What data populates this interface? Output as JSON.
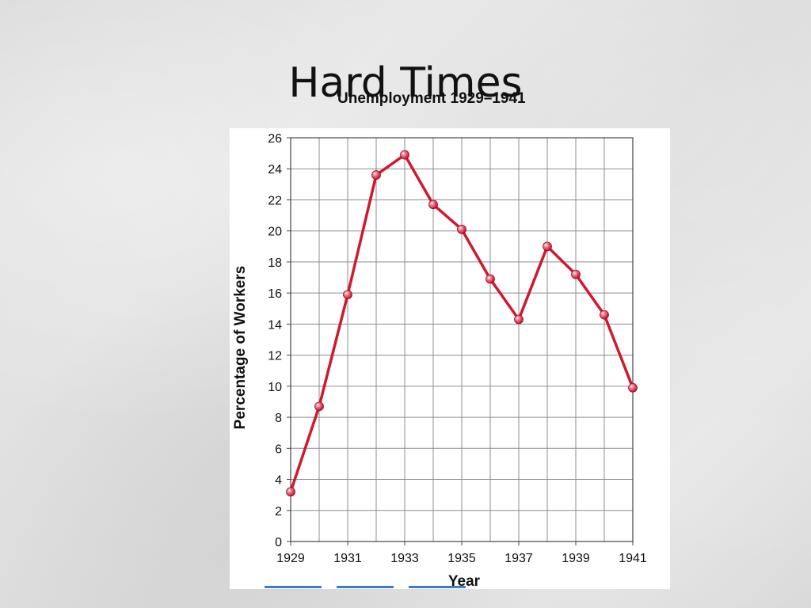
{
  "slide": {
    "title": "Hard Times"
  },
  "chart_data": {
    "type": "line",
    "title": "Unemployment 1929–1941",
    "xlabel": "Year",
    "ylabel": "Percentage of Workers",
    "x": [
      1929,
      1930,
      1931,
      1932,
      1933,
      1934,
      1935,
      1936,
      1937,
      1938,
      1939,
      1940,
      1941
    ],
    "series": [
      {
        "values": [
          3.2,
          8.7,
          15.9,
          23.6,
          24.9,
          21.7,
          20.1,
          16.9,
          14.3,
          19.0,
          17.2,
          14.6,
          9.9
        ]
      }
    ],
    "xlim": [
      1929,
      1941
    ],
    "ylim": [
      0,
      26
    ],
    "yticks": [
      0,
      2,
      4,
      6,
      8,
      10,
      12,
      14,
      16,
      18,
      20,
      22,
      24,
      26
    ],
    "xtick_labels": [
      "1929",
      "1931",
      "1933",
      "1935",
      "1937",
      "1939",
      "1941"
    ],
    "grid": true,
    "line_color": "#d0182f"
  }
}
